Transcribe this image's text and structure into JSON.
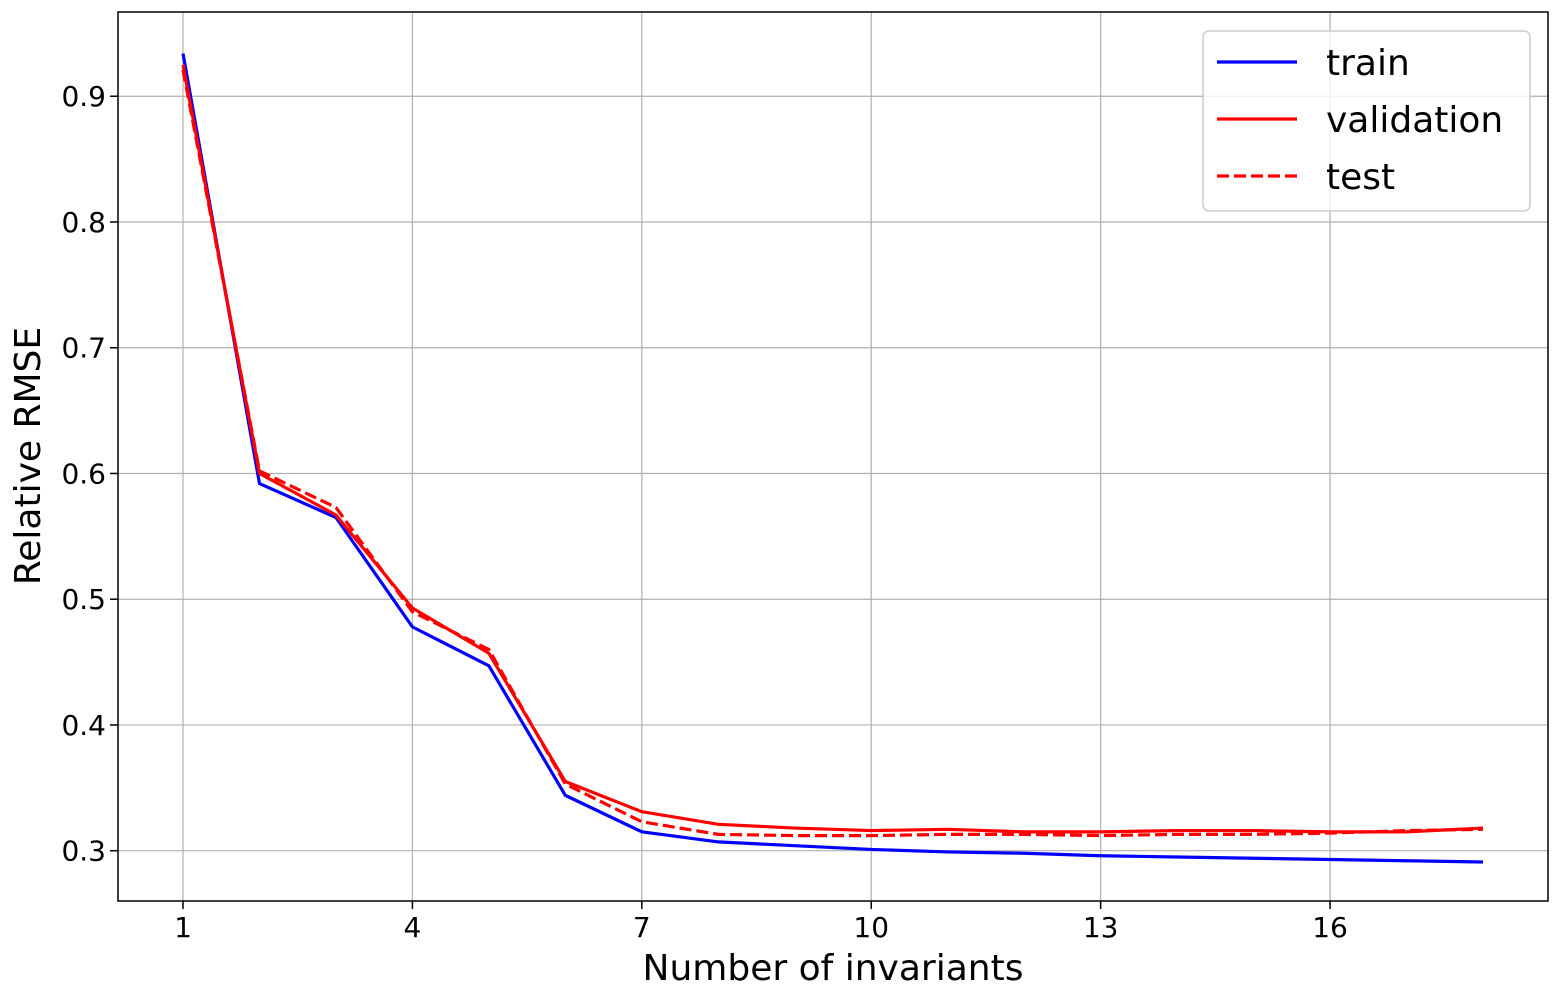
{
  "chart_data": {
    "type": "line",
    "title": "",
    "xlabel": "Number of invariants",
    "ylabel": "Relative RMSE",
    "xlim": [
      0.15,
      18.85
    ],
    "ylim": [
      0.26,
      0.967
    ],
    "xticks": [
      1,
      4,
      7,
      10,
      13,
      16
    ],
    "xtick_labels": [
      "1",
      "4",
      "7",
      "10",
      "13",
      "16"
    ],
    "yticks": [
      0.3,
      0.4,
      0.5,
      0.6,
      0.7,
      0.8,
      0.9
    ],
    "ytick_labels": [
      "0.3",
      "0.4",
      "0.5",
      "0.6",
      "0.7",
      "0.8",
      "0.9"
    ],
    "grid": true,
    "legend_position": "top-right",
    "x": [
      1,
      2,
      3,
      4,
      5,
      6,
      7,
      8,
      9,
      10,
      11,
      12,
      13,
      14,
      15,
      16,
      17,
      18
    ],
    "series": [
      {
        "name": "train",
        "color": "#0000ff",
        "linestyle": "solid",
        "values": [
          0.934,
          0.592,
          0.565,
          0.478,
          0.447,
          0.344,
          0.315,
          0.307,
          0.304,
          0.301,
          0.299,
          0.298,
          0.296,
          0.295,
          0.294,
          0.293,
          0.292,
          0.291
        ]
      },
      {
        "name": "validation",
        "color": "#ff0000",
        "linestyle": "solid",
        "values": [
          0.925,
          0.6,
          0.567,
          0.493,
          0.457,
          0.355,
          0.331,
          0.321,
          0.318,
          0.316,
          0.317,
          0.315,
          0.315,
          0.316,
          0.316,
          0.315,
          0.315,
          0.318
        ]
      },
      {
        "name": "test",
        "color": "#ff0000",
        "linestyle": "dashed",
        "values": [
          0.921,
          0.602,
          0.573,
          0.49,
          0.46,
          0.353,
          0.323,
          0.313,
          0.312,
          0.312,
          0.313,
          0.313,
          0.312,
          0.313,
          0.313,
          0.314,
          0.316,
          0.317
        ]
      }
    ]
  }
}
